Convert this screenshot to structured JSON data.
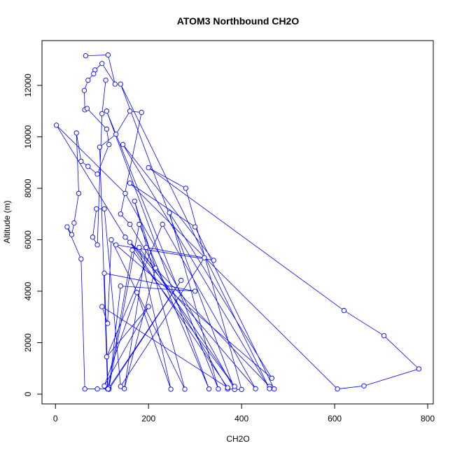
{
  "chart_data": {
    "type": "line",
    "title": "ATOM3 Northbound CH2O",
    "x_label": "CH2O",
    "y_label": "Altitude (m)",
    "color": "#0000ff",
    "markers": "open-circle",
    "x": [
      65,
      113,
      128,
      100,
      85,
      82,
      70,
      62,
      63,
      68,
      110,
      115,
      90,
      70,
      55,
      45,
      50,
      40,
      35,
      25,
      55,
      63,
      90,
      112,
      95,
      130,
      160,
      185,
      140,
      160,
      370,
      400,
      280,
      200,
      620,
      706,
      781,
      663,
      606,
      160,
      300,
      470,
      460,
      150,
      2,
      150,
      385,
      140,
      460,
      145,
      340,
      130,
      465,
      245,
      350,
      110,
      330,
      180,
      115,
      270,
      115,
      140,
      300,
      105,
      113,
      165,
      385,
      180,
      248,
      175,
      105,
      200,
      110,
      230,
      430,
      160,
      370,
      100,
      112,
      120,
      278,
      170,
      215,
      148,
      195,
      320,
      140,
      105,
      88,
      80,
      90,
      100,
      108
    ],
    "values": [
      13150,
      13180,
      12050,
      12850,
      12600,
      12450,
      12200,
      11800,
      11050,
      11100,
      10300,
      9700,
      8550,
      8850,
      9050,
      10150,
      7800,
      6650,
      6200,
      6500,
      5250,
      200,
      200,
      200,
      9600,
      10100,
      11000,
      10950,
      7000,
      6600,
      200,
      180,
      8000,
      8800,
      3250,
      2270,
      980,
      320,
      200,
      8200,
      6500,
      200,
      300,
      6100,
      10450,
      7800,
      180,
      12050,
      210,
      9700,
      5200,
      5800,
      620,
      7050,
      200,
      11000,
      200,
      6600,
      250,
      4420,
      190,
      4200,
      4000,
      4700,
      200,
      5600,
      300,
      5700,
      190,
      3950,
      320,
      3400,
      1450,
      6600,
      210,
      5900,
      250,
      3400,
      2750,
      6000,
      190,
      7500,
      4900,
      210,
      5700,
      5300,
      300,
      7200,
      7200,
      6100,
      5800,
      10900,
      12200
    ],
    "xlim": [
      -29,
      812
    ],
    "ylim": [
      -380,
      13740
    ],
    "xticks": [
      0,
      200,
      400,
      600,
      800
    ],
    "yticks": [
      0,
      2000,
      4000,
      6000,
      8000,
      10000,
      12000
    ]
  }
}
